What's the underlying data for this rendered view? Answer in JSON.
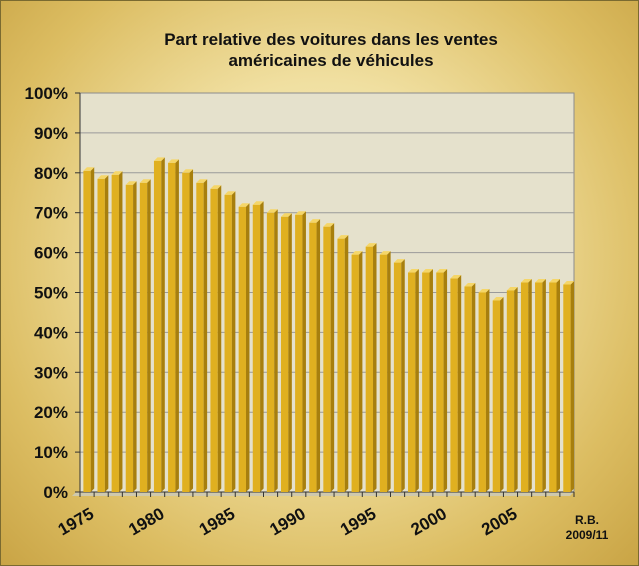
{
  "chart_data": {
    "type": "bar",
    "title_line1": "Part relative des voitures  dans les ventes",
    "title_line2": "américaines de véhicules",
    "years": [
      1975,
      1976,
      1977,
      1978,
      1979,
      1980,
      1981,
      1982,
      1983,
      1984,
      1985,
      1986,
      1987,
      1988,
      1989,
      1990,
      1991,
      1992,
      1993,
      1994,
      1995,
      1996,
      1997,
      1998,
      1999,
      2000,
      2001,
      2002,
      2003,
      2004,
      2005,
      2006,
      2007,
      2008,
      2009
    ],
    "values": [
      80.5,
      78.5,
      79.5,
      77,
      77.5,
      83,
      82.5,
      80,
      77.5,
      76,
      74.5,
      71.5,
      72,
      70,
      69,
      69.5,
      67.5,
      66.5,
      63.5,
      59.5,
      61.5,
      59.5,
      57.5,
      55,
      55,
      55,
      53.5,
      51.5,
      50,
      48,
      50.5,
      52.5,
      52.5,
      52.5,
      52
    ],
    "x_tick_labels": [
      "1975",
      "1980",
      "1985",
      "1990",
      "1995",
      "2000",
      "2005"
    ],
    "y_tick_labels": [
      "0%",
      "10%",
      "20%",
      "30%",
      "40%",
      "50%",
      "60%",
      "70%",
      "80%",
      "90%",
      "100%"
    ],
    "ylim": [
      0,
      100
    ],
    "grid": true,
    "colors": {
      "bar": "#e0b020",
      "bar_top": "#f5d668",
      "bar_side": "#a77f0e",
      "plot_bg": "#e5e1cc",
      "grid": "#9a9a9a"
    }
  },
  "credit": {
    "author": "R.B.",
    "date": "2009/11"
  }
}
